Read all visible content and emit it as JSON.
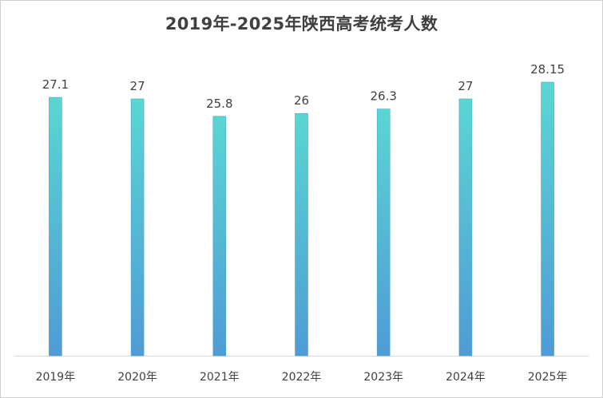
{
  "chart_data": {
    "type": "bar",
    "title": "2019年-2025年陕西高考统考人数",
    "categories": [
      "2019年",
      "2020年",
      "2021年",
      "2022年",
      "2023年",
      "2024年",
      "2025年"
    ],
    "values": [
      27.1,
      27,
      25.8,
      26,
      26.3,
      27,
      28.15
    ],
    "value_labels": [
      "27.1",
      "27",
      "25.8",
      "26",
      "26.3",
      "27",
      "28.15"
    ],
    "xlabel": "",
    "ylabel": "",
    "ylim": [
      0,
      30
    ],
    "grid": false,
    "legend": "none",
    "bar_gradient": [
      "#5ad6d3",
      "#4f9bd6"
    ],
    "axis_color": "#d9d9d9",
    "text_color": "#404040"
  }
}
